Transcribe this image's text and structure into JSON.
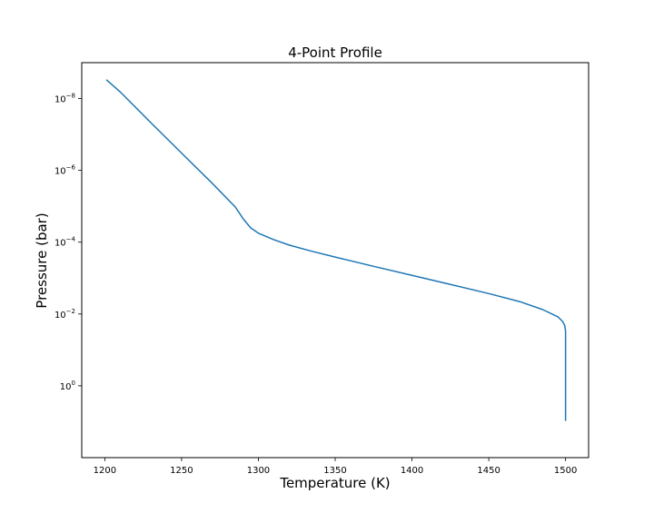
{
  "chart_data": {
    "type": "line",
    "title": "4-Point Profile",
    "xlabel": "Temperature (K)",
    "ylabel": "Pressure (bar)",
    "xlim": [
      1185,
      1515
    ],
    "ylim": [
      100,
      1e-09
    ],
    "y_scale": "log",
    "y_inverted": true,
    "grid": false,
    "colors": {
      "line": "#1f77b4",
      "axes": "#000000"
    },
    "x_ticks": [
      {
        "value": 1200,
        "label": "1200"
      },
      {
        "value": 1250,
        "label": "1250"
      },
      {
        "value": 1300,
        "label": "1300"
      },
      {
        "value": 1350,
        "label": "1350"
      },
      {
        "value": 1400,
        "label": "1400"
      },
      {
        "value": 1450,
        "label": "1450"
      },
      {
        "value": 1500,
        "label": "1500"
      }
    ],
    "y_ticks": [
      {
        "value": 1e-08,
        "base": "10",
        "exp": "−8"
      },
      {
        "value": 1e-06,
        "base": "10",
        "exp": "−6"
      },
      {
        "value": 0.0001,
        "base": "10",
        "exp": "−4"
      },
      {
        "value": 0.01,
        "base": "10",
        "exp": "−2"
      },
      {
        "value": 1,
        "base": "10",
        "exp": "0"
      }
    ],
    "series": [
      {
        "x": [
          1201,
          1210,
          1230,
          1250,
          1270,
          1285,
          1290,
          1295,
          1300,
          1310,
          1320,
          1335,
          1350,
          1375,
          1400,
          1425,
          1450,
          1470,
          1485,
          1495,
          1498,
          1499.5,
          1500,
          1500
        ],
        "y": [
          3e-09,
          6.5e-09,
          4.7e-08,
          3.3e-07,
          2.3e-06,
          1.05e-05,
          2.2e-05,
          4e-05,
          5.6e-05,
          8.5e-05,
          0.00012,
          0.00018,
          0.00026,
          0.00047,
          0.00084,
          0.0015,
          0.0027,
          0.0045,
          0.0075,
          0.012,
          0.016,
          0.021,
          0.03,
          9.5
        ]
      }
    ]
  }
}
